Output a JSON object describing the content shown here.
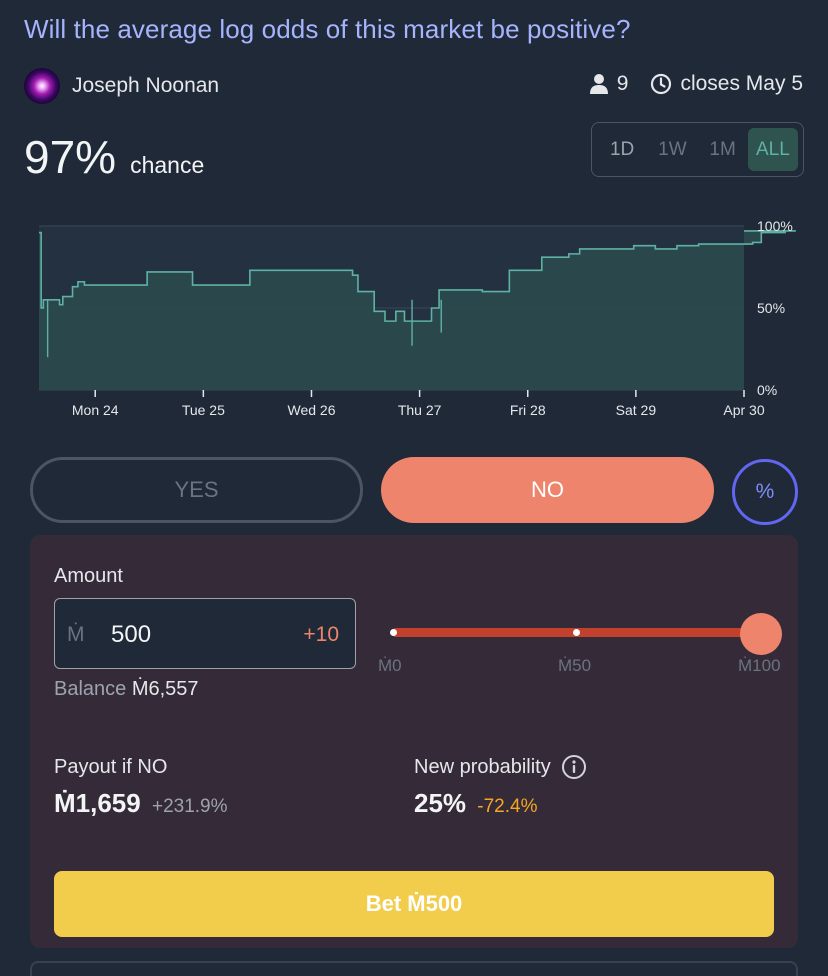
{
  "market": {
    "title": "Will the average log odds of this market be positive?",
    "author": "Joseph Noonan",
    "traders": "9",
    "closes": "closes May 5",
    "probability": "97%",
    "probability_label": "chance"
  },
  "range_tabs": [
    "1D",
    "1W",
    "1M",
    "ALL"
  ],
  "range_active": "ALL",
  "chart_data": {
    "type": "area",
    "x_tick_labels": [
      "Mon 24",
      "Tue 25",
      "Wed 26",
      "Thu 27",
      "Fri 28",
      "Sat 29",
      "Apr 30"
    ],
    "y_tick_labels": [
      "100%",
      "50%",
      "0%"
    ],
    "ylim": [
      0,
      100
    ],
    "grid": true,
    "color": "#5eb1a4",
    "series": [
      {
        "values": [
          [
            0.0,
            96
          ],
          [
            0.02,
            50
          ],
          [
            0.04,
            55
          ],
          [
            0.19,
            52
          ],
          [
            0.22,
            57
          ],
          [
            0.31,
            63
          ],
          [
            0.36,
            66
          ],
          [
            0.4,
            66
          ],
          [
            0.42,
            64
          ],
          [
            0.8,
            64
          ],
          [
            0.95,
            64
          ],
          [
            1.0,
            72
          ],
          [
            1.35,
            72
          ],
          [
            1.42,
            64
          ],
          [
            1.72,
            64
          ],
          [
            1.95,
            73
          ],
          [
            2.35,
            73
          ],
          [
            2.85,
            73
          ],
          [
            2.9,
            70
          ],
          [
            2.95,
            60
          ],
          [
            3.1,
            48
          ],
          [
            3.2,
            42
          ],
          [
            3.3,
            48
          ],
          [
            3.38,
            42
          ],
          [
            3.5,
            42
          ],
          [
            3.63,
            50
          ],
          [
            3.7,
            61
          ],
          [
            3.9,
            61
          ],
          [
            4.1,
            60
          ],
          [
            4.25,
            60
          ],
          [
            4.35,
            73
          ],
          [
            4.6,
            73
          ],
          [
            4.65,
            81
          ],
          [
            4.9,
            83
          ],
          [
            5.0,
            86
          ],
          [
            5.5,
            88
          ],
          [
            5.7,
            86
          ],
          [
            5.9,
            88
          ],
          [
            6.1,
            89
          ],
          [
            6.5,
            89
          ],
          [
            6.6,
            90
          ],
          [
            6.68,
            96
          ],
          [
            6.9,
            97
          ],
          [
            7.0,
            97
          ]
        ]
      }
    ]
  },
  "bet": {
    "yes_label": "YES",
    "no_label": "NO",
    "pct_label": "%",
    "amount_label": "Amount",
    "currency_symbol": "Ṁ",
    "amount": "500",
    "increment": "+10",
    "slider_ticks": [
      "Ṁ0",
      "Ṁ50",
      "Ṁ100"
    ],
    "slider_fraction": 1.0,
    "balance_label": "Balance",
    "balance_value": "Ṁ6,557",
    "payout_label": "Payout if NO",
    "payout_value": "Ṁ1,659",
    "payout_change": "+231.9%",
    "new_prob_label": "New probability",
    "new_prob_value": "25%",
    "new_prob_change": "-72.4%",
    "bet_button": "Bet Ṁ500"
  }
}
